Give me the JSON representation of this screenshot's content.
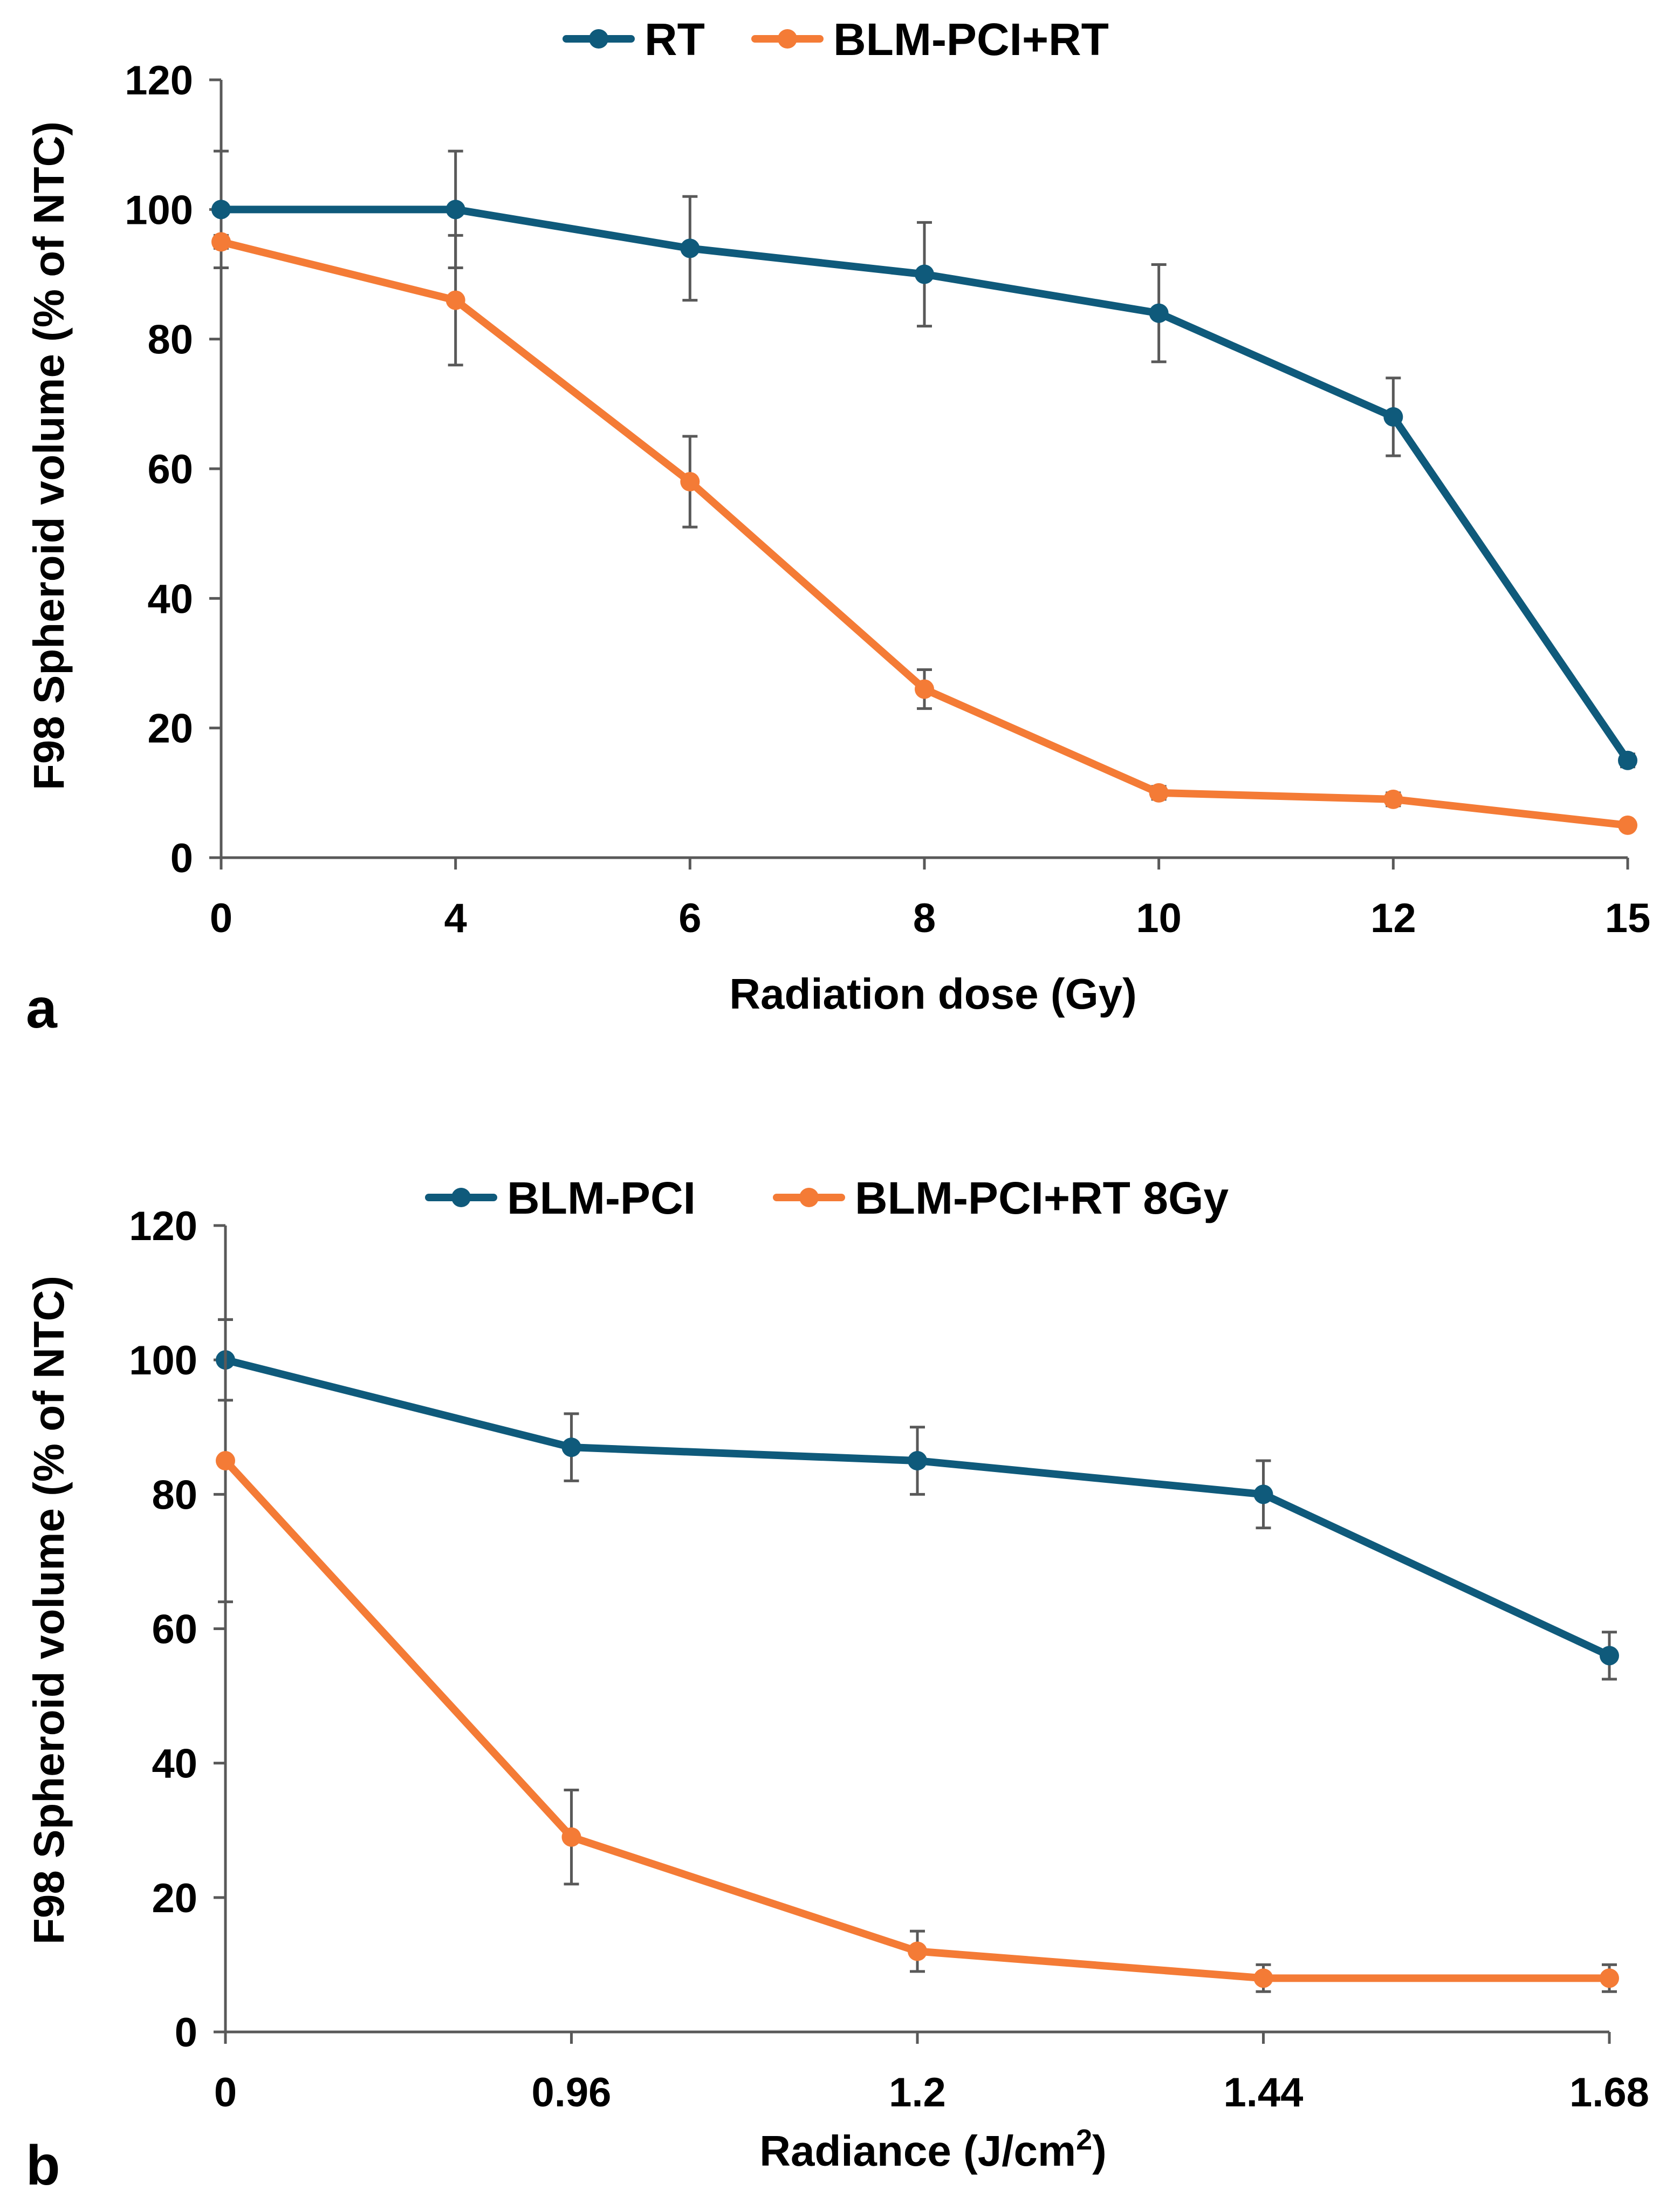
{
  "colors": {
    "series_1": "#0F5A7B",
    "series_2": "#F47B36"
  },
  "chart_data": [
    {
      "type": "line",
      "panel_label": "a",
      "xlabel": "Radiation dose (Gy)",
      "ylabel": "F98 Spheroid volume (% of NTC)",
      "ylabel_parts": {
        "base": "F98 Spheroid volume (% of NTC)",
        "sup": "",
        "after": ""
      },
      "xlabel_parts": {
        "base": "Radiation dose (Gy)",
        "sup": "",
        "after": ""
      },
      "x_scale": "categorical",
      "categories": [
        "0",
        "4",
        "6",
        "8",
        "10",
        "12",
        "15"
      ],
      "ylim": [
        0,
        120
      ],
      "yticks": [
        0,
        20,
        40,
        60,
        80,
        100,
        120
      ],
      "grid": false,
      "legend_position": "top",
      "series": [
        {
          "name": "RT",
          "values": [
            100,
            100,
            94,
            90,
            84,
            68,
            15
          ],
          "errors": [
            9,
            9,
            8,
            8,
            7.5,
            6,
            1
          ]
        },
        {
          "name": "BLM-PCI+RT",
          "values": [
            95,
            86,
            58,
            26,
            10,
            9,
            5
          ],
          "errors": [
            1,
            10,
            7,
            3,
            1,
            1,
            0.5
          ]
        }
      ]
    },
    {
      "type": "line",
      "panel_label": "b",
      "xlabel": "Radiance (J/cm2)",
      "ylabel": "F98 Spheroid volume (% of NTC)",
      "ylabel_parts": {
        "base": "F98 Spheroid volume (% of NTC)",
        "sup": "",
        "after": ""
      },
      "xlabel_parts": {
        "base": "Radiance (J/cm",
        "sup": "2",
        "after": ")"
      },
      "x_scale": "categorical",
      "categories": [
        "0",
        "0.96",
        "1.2",
        "1.44",
        "1.68"
      ],
      "ylim": [
        0,
        120
      ],
      "yticks": [
        0,
        20,
        40,
        60,
        80,
        100,
        120
      ],
      "grid": false,
      "legend_position": "top",
      "series": [
        {
          "name": "BLM-PCI",
          "values": [
            100,
            87,
            85,
            80,
            56
          ],
          "errors": [
            6,
            5,
            5,
            5,
            3.5
          ]
        },
        {
          "name": "BLM-PCI+RT 8Gy",
          "values": [
            85,
            29,
            12,
            8,
            8
          ],
          "errors": [
            21,
            7,
            3,
            2,
            2
          ]
        }
      ]
    }
  ]
}
